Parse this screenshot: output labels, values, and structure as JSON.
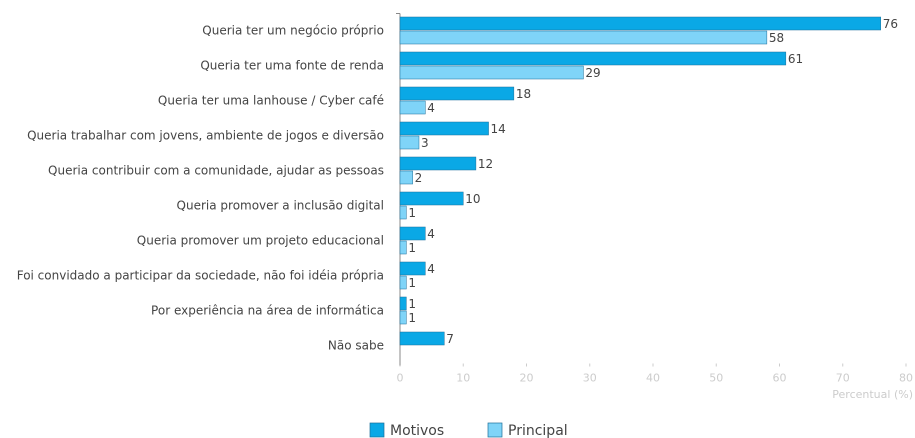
{
  "chart_data": {
    "type": "hbar",
    "categories": [
      "Queria ter um negócio próprio",
      "Queria ter uma fonte de renda",
      "Queria ter uma lanhouse / Cyber café",
      "Queria trabalhar com jovens, ambiente de jogos e diversão",
      "Queria contribuir com a comunidade, ajudar as pessoas",
      "Queria promover a inclusão digital",
      "Queria promover um projeto educacional",
      "Foi convidado a participar da sociedade, não foi idéia própria",
      "Por experiência na área de informática",
      "Não sabe"
    ],
    "series": [
      {
        "name": "Motivos",
        "color": "#0aa8e6",
        "values": [
          76,
          61,
          18,
          14,
          12,
          10,
          4,
          4,
          1,
          7
        ]
      },
      {
        "name": "Principal",
        "color": "#7fd4f8",
        "values": [
          58,
          29,
          4,
          3,
          2,
          1,
          1,
          1,
          1,
          null
        ]
      }
    ],
    "xlabel": "Percentual (%)",
    "xlim": [
      0,
      80
    ],
    "xticks": [
      0,
      10,
      20,
      30,
      40,
      50,
      60,
      70,
      80
    ]
  }
}
